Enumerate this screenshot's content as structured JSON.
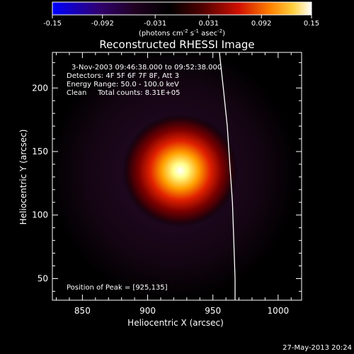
{
  "colorbar": {
    "tick_labels": [
      "-0.15",
      "-0.092",
      "-0.031",
      "0.031",
      "0.092",
      "0.15"
    ],
    "tick_values": [
      -0.15,
      -0.092,
      -0.031,
      0.031,
      0.092,
      0.15
    ],
    "range": [
      -0.15,
      0.15
    ],
    "units_label": "(photons cm",
    "units_exp1": "-2",
    "units_mid": " s",
    "units_exp2": "-1",
    "units_mid2": " asec",
    "units_exp3": "-2",
    "units_end": ")",
    "colors": [
      "#0000ff",
      "#300060",
      "#000000",
      "#400000",
      "#c00000",
      "#ff8000",
      "#ffff80",
      "#ffffff"
    ]
  },
  "chart_data": {
    "type": "heatmap",
    "title": "Reconstructed RHESSI Image",
    "xlabel": "Heliocentric X (arcsec)",
    "ylabel": "Heliocentric Y (arcsec)",
    "xlim": [
      827,
      1018
    ],
    "ylim": [
      33,
      228
    ],
    "xticks": [
      850,
      900,
      950,
      1000
    ],
    "yticks": [
      50,
      100,
      150,
      200
    ],
    "peak": [
      925,
      135
    ],
    "limb_curve": [
      [
        955,
        228
      ],
      [
        958,
        200
      ],
      [
        961,
        170
      ],
      [
        963,
        140
      ],
      [
        965,
        110
      ],
      [
        966,
        80
      ],
      [
        967,
        50
      ],
      [
        967,
        33
      ]
    ],
    "annotations": [
      "3-Nov-2003 09:46:38.000 to 09:52:38.000",
      "Detectors: 4F 5F 6F 7F 8F, Att 3",
      "Energy Range: 50.0 - 100.0 keV",
      "Clean     Total counts: 8.31E+05"
    ],
    "peak_label": "Position of Peak = [925,135]"
  },
  "footer_timestamp": "27-May-2013 20:24"
}
